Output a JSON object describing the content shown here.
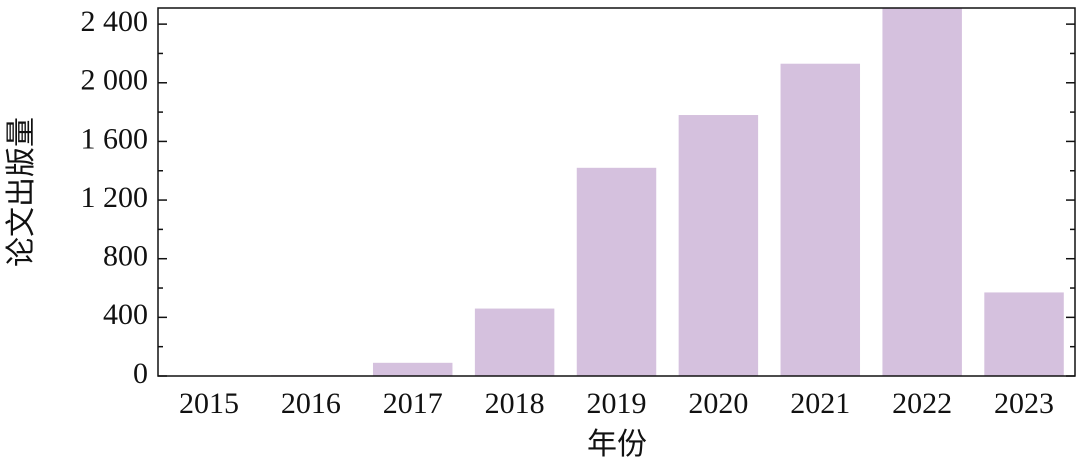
{
  "chart_data": {
    "type": "bar",
    "x_label": "年份",
    "y_label": "论文出版量",
    "categories": [
      "2015",
      "2016",
      "2017",
      "2018",
      "2019",
      "2020",
      "2021",
      "2022",
      "2023"
    ],
    "values": [
      0,
      5,
      90,
      460,
      1420,
      1780,
      2130,
      2510,
      570
    ],
    "color": "#d5c1de",
    "ylim": [
      0,
      2510
    ],
    "yticks": [
      0,
      400,
      800,
      {
        "value": 1200,
        "label": "1 200"
      },
      {
        "value": 1600,
        "label": "1 600"
      },
      {
        "value": 2000,
        "label": "2 000"
      },
      {
        "value": 2400,
        "label": "2 400"
      }
    ],
    "yminorticks": [
      200,
      600,
      1000,
      1400,
      1800,
      2200
    ],
    "grid": false
  }
}
